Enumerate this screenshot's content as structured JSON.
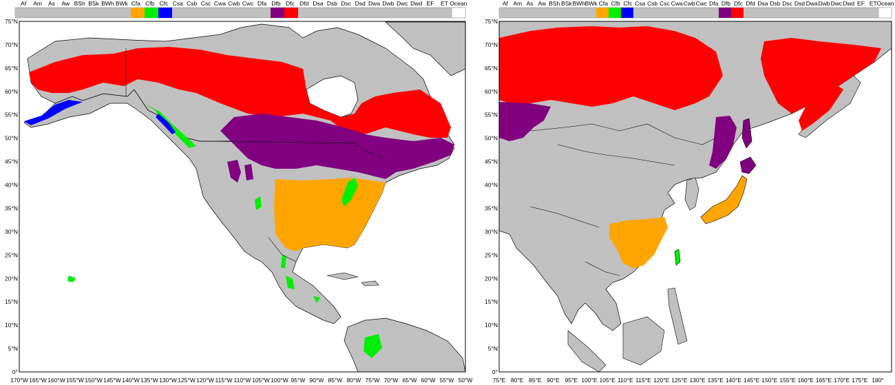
{
  "colors": {
    "gray": "#c0c0c0",
    "ocean": "#ffffff",
    "Cfa": "#ffa500",
    "Cfb": "#00ee00",
    "Cfc": "#0000ff",
    "Dfb": "#800080",
    "Dfc": "#ff0000",
    "coast": "#000000"
  },
  "legend": {
    "codes": [
      "Af",
      "Am",
      "As",
      "Aw",
      "BSh",
      "BSk",
      "BWh",
      "BWk",
      "Cfa",
      "Cfb",
      "Cfc",
      "Csa",
      "Csb",
      "Csc",
      "Cwa",
      "Cwb",
      "Cwc",
      "Dfa",
      "Dfb",
      "Dfc",
      "Dfd",
      "Dsa",
      "Dsb",
      "Dsc",
      "Dsd",
      "Dwa",
      "Dwb",
      "Dwc",
      "Dwd",
      "EF",
      "ET",
      "Ocean"
    ],
    "colored": {
      "Cfa": "#ffa500",
      "Cfb": "#00ee00",
      "Cfc": "#0000ff",
      "Dfb": "#800080",
      "Dfc": "#ff0000",
      "Ocean": "#ffffff"
    }
  },
  "maps": [
    {
      "name": "North America",
      "lat_labels": [
        "75°N",
        "70°N",
        "65°N",
        "60°N",
        "55°N",
        "50°N",
        "45°N",
        "40°N",
        "35°N",
        "30°N",
        "25°N",
        "20°N",
        "15°N",
        "10°N",
        "5°N",
        "0°"
      ],
      "lon_labels": [
        "170°W",
        "165°W",
        "160°W",
        "155°W",
        "150°W",
        "145°W",
        "140°W",
        "135°W",
        "130°W",
        "125°W",
        "120°W",
        "115°W",
        "110°W",
        "105°W",
        "100°W",
        "95°W",
        "90°W",
        "85°W",
        "80°W",
        "75°W",
        "70°W",
        "65°W",
        "60°W",
        "55°W",
        "50°W"
      ]
    },
    {
      "name": "East Asia",
      "lat_labels": [
        "75°N",
        "70°N",
        "65°N",
        "60°N",
        "55°N",
        "50°N",
        "45°N",
        "40°N",
        "35°N",
        "30°N",
        "25°N",
        "20°N",
        "15°N",
        "10°N",
        "5°N",
        "0°"
      ],
      "lon_labels": [
        "75°E",
        "80°E",
        "85°E",
        "90°E",
        "95°E",
        "100°E",
        "105°E",
        "110°E",
        "115°E",
        "120°E",
        "125°E",
        "130°E",
        "135°E",
        "140°E",
        "145°E",
        "150°E",
        "155°E",
        "160°E",
        "165°E",
        "170°E",
        "175°E",
        "180°"
      ]
    }
  ]
}
